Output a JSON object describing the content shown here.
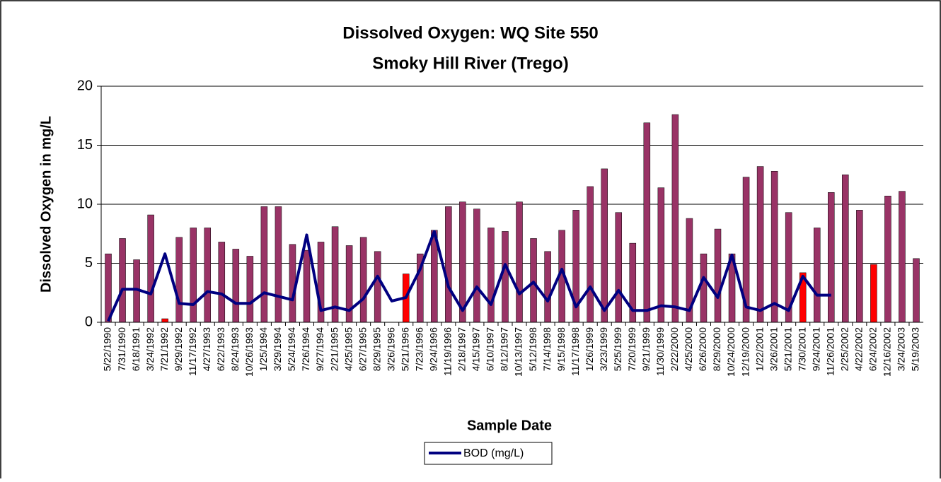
{
  "chart_data": {
    "type": "bar_line",
    "title": "Dissolved Oxygen: WQ Site 550",
    "subtitle": "Smoky Hill River (Trego)",
    "y_label": "Dissolved Oxygen in mg/L",
    "x_label": "Sample Date",
    "categories": [
      "5/22/1990",
      "7/31/1990",
      "6/18/1991",
      "3/24/1992",
      "7/21/1992",
      "9/29/1992",
      "11/17/1992",
      "4/27/1993",
      "6/22/1993",
      "8/24/1993",
      "10/26/1993",
      "1/25/1994",
      "3/29/1994",
      "5/24/1994",
      "7/26/1994",
      "9/27/1994",
      "2/21/1995",
      "4/25/1995",
      "6/27/1995",
      "8/29/1995",
      "3/26/1996",
      "5/21/1996",
      "7/23/1996",
      "9/24/1996",
      "11/19/1996",
      "2/18/1997",
      "4/15/1997",
      "6/10/1997",
      "8/12/1997",
      "10/13/1997",
      "5/12/1998",
      "7/14/1998",
      "9/15/1998",
      "11/17/1998",
      "1/26/1999",
      "3/23/1999",
      "5/25/1999",
      "7/20/1999",
      "9/21/1999",
      "11/30/1999",
      "2/22/2000",
      "4/25/2000",
      "6/26/2000",
      "8/29/2000",
      "10/24/2000",
      "12/19/2000",
      "1/22/2001",
      "3/26/2001",
      "5/21/2001",
      "7/30/2001",
      "9/24/2001",
      "11/26/2001",
      "2/25/2002",
      "4/22/2002",
      "6/24/2002",
      "12/16/2002",
      "3/24/2003",
      "5/19/2003"
    ],
    "series": [
      {
        "kind": "bar",
        "colors": [
          "#993366",
          "#993366",
          "#993366",
          "#993366",
          "#ff0000",
          "#993366",
          "#993366",
          "#993366",
          "#993366",
          "#993366",
          "#993366",
          "#993366",
          "#993366",
          "#993366",
          "#993366",
          "#993366",
          "#993366",
          "#993366",
          "#993366",
          "#993366",
          "#993366",
          "#ff0000",
          "#993366",
          "#993366",
          "#993366",
          "#993366",
          "#993366",
          "#993366",
          "#993366",
          "#993366",
          "#993366",
          "#993366",
          "#993366",
          "#993366",
          "#993366",
          "#993366",
          "#993366",
          "#993366",
          "#993366",
          "#993366",
          "#993366",
          "#993366",
          "#993366",
          "#993366",
          "#993366",
          "#993366",
          "#993366",
          "#993366",
          "#993366",
          "#ff0000",
          "#993366",
          "#993366",
          "#993366",
          "#993366",
          "#ff0000",
          "#993366",
          "#993366",
          "#993366"
        ],
        "values": [
          5.8,
          7.1,
          5.3,
          9.1,
          0.3,
          7.2,
          8.0,
          8.0,
          6.8,
          6.2,
          5.6,
          9.8,
          9.8,
          6.6,
          6.1,
          6.8,
          8.1,
          6.5,
          7.2,
          6.0,
          null,
          4.1,
          5.8,
          7.8,
          9.8,
          10.2,
          9.6,
          8.0,
          7.7,
          10.2,
          7.1,
          6.0,
          7.8,
          9.5,
          11.5,
          13.0,
          9.3,
          6.7,
          16.9,
          11.4,
          17.6,
          8.8,
          5.8,
          7.9,
          5.8,
          12.3,
          13.2,
          12.8,
          9.3,
          4.2,
          8.0,
          11.0,
          12.5,
          9.5,
          4.9,
          10.7,
          11.1,
          5.4
        ]
      },
      {
        "kind": "line",
        "name": "BOD (mg/L)",
        "color": "#000080",
        "values": [
          0.1,
          2.8,
          2.8,
          2.4,
          5.8,
          1.6,
          1.5,
          2.6,
          2.4,
          1.6,
          1.6,
          2.5,
          2.2,
          1.9,
          7.4,
          1.0,
          1.3,
          1.0,
          2.0,
          3.9,
          1.8,
          2.1,
          4.5,
          7.7,
          3.0,
          1.0,
          3.0,
          1.5,
          4.9,
          2.4,
          3.4,
          1.8,
          4.5,
          1.3,
          3.0,
          1.0,
          2.7,
          1.0,
          1.0,
          1.4,
          1.3,
          1.0,
          3.8,
          2.1,
          5.7,
          1.3,
          1.0,
          1.6,
          1.0,
          3.9,
          2.3,
          2.3,
          null,
          null,
          null,
          null,
          null,
          null
        ]
      }
    ],
    "ylim": [
      0,
      20
    ],
    "yticks": [
      0,
      5,
      10,
      15,
      20
    ],
    "grid": true,
    "legend": "bottom"
  }
}
